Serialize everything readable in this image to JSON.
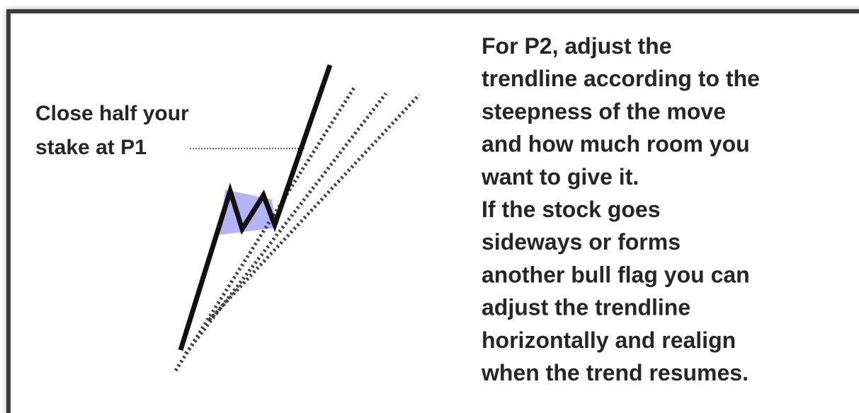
{
  "label": {
    "lines": [
      "Close half your",
      "stake at P1"
    ]
  },
  "note": {
    "lines": [
      "For P2, adjust the",
      "trendline according to the",
      "steepness of the move",
      "and how much room you",
      "want to give it.",
      "If the stock goes",
      "sideways or forms",
      "another bull flag you can",
      "adjust the trendline",
      "horizontally and realign",
      "when the trend resumes."
    ]
  }
}
